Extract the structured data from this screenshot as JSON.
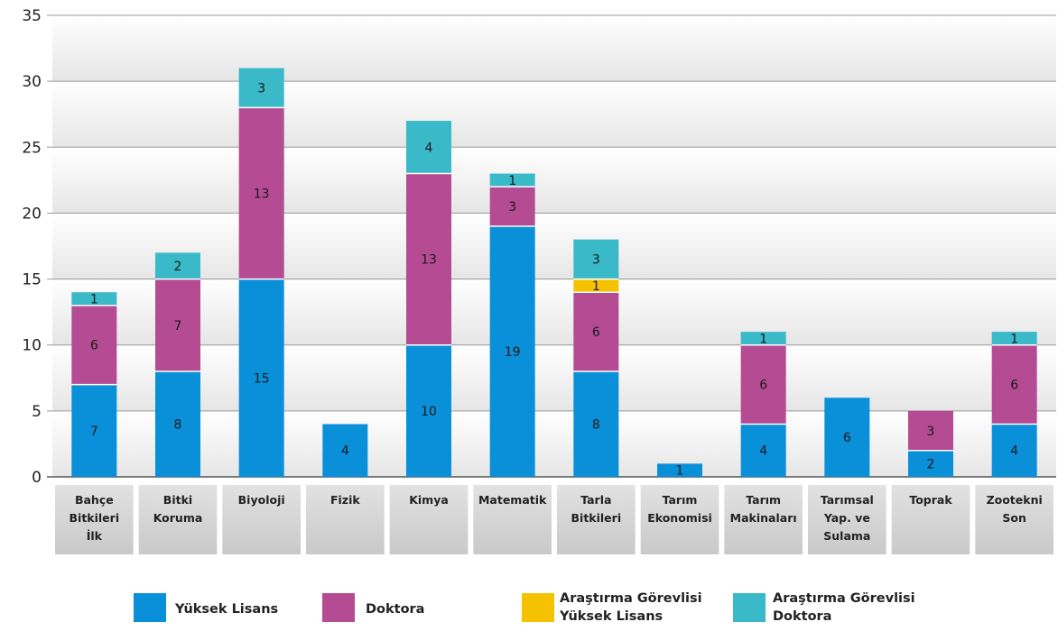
{
  "chart_data": {
    "type": "bar",
    "stacked": true,
    "categories": [
      [
        "Bahçe",
        "Bitkileri",
        "İlk"
      ],
      [
        "Bitki",
        "Koruma"
      ],
      [
        "Biyoloji"
      ],
      [
        "Fizik"
      ],
      [
        "Kimya"
      ],
      [
        "Matematik"
      ],
      [
        "Tarla",
        "Bitkileri"
      ],
      [
        "Tarım",
        "Ekonomisi"
      ],
      [
        "Tarım",
        "Makinaları"
      ],
      [
        "Tarımsal",
        "Yap. ve",
        "Sulama"
      ],
      [
        "Toprak"
      ],
      [
        "Zootekni",
        "Son"
      ]
    ],
    "series": [
      {
        "name": [
          "Yüksek Lisans"
        ],
        "color": "#0a8fd9",
        "values": [
          7,
          8,
          15,
          4,
          10,
          19,
          8,
          1,
          4,
          6,
          2,
          4
        ],
        "labels": [
          "7",
          "8",
          "15",
          "4",
          "10",
          "19",
          "8",
          "1",
          "4",
          "6",
          "2",
          "4"
        ]
      },
      {
        "name": [
          "Doktora"
        ],
        "color": "#b44b93",
        "values": [
          6,
          7,
          13,
          0,
          13,
          3,
          6,
          0,
          6,
          0,
          3,
          6
        ],
        "labels": [
          "6",
          "7",
          "13",
          "",
          "13",
          "3",
          "6",
          "",
          "6",
          "",
          "3",
          "6"
        ]
      },
      {
        "name": [
          "Araştırma Görevlisi",
          "Yüksek Lisans"
        ],
        "color": "#f5c200",
        "values": [
          0,
          0,
          0,
          0,
          0,
          0,
          1,
          0,
          0,
          0,
          0,
          0
        ],
        "labels": [
          "",
          "",
          "",
          "",
          "",
          "",
          "1",
          "",
          "",
          "",
          "",
          ""
        ]
      },
      {
        "name": [
          "Araştırma Görevlisi",
          "Doktora"
        ],
        "color": "#3ab9c8",
        "values": [
          1,
          2,
          3,
          0,
          4,
          1,
          3,
          0,
          1,
          0,
          0,
          1
        ],
        "labels": [
          "1",
          "2",
          "3",
          "",
          "4",
          "1",
          "3",
          "",
          "1",
          "",
          "",
          "1"
        ]
      }
    ],
    "ylim": [
      0,
      35
    ],
    "yticks": [
      "0",
      "5",
      "10",
      "15",
      "20",
      "25",
      "30",
      "35"
    ],
    "grid": true,
    "legend": "bottom"
  }
}
